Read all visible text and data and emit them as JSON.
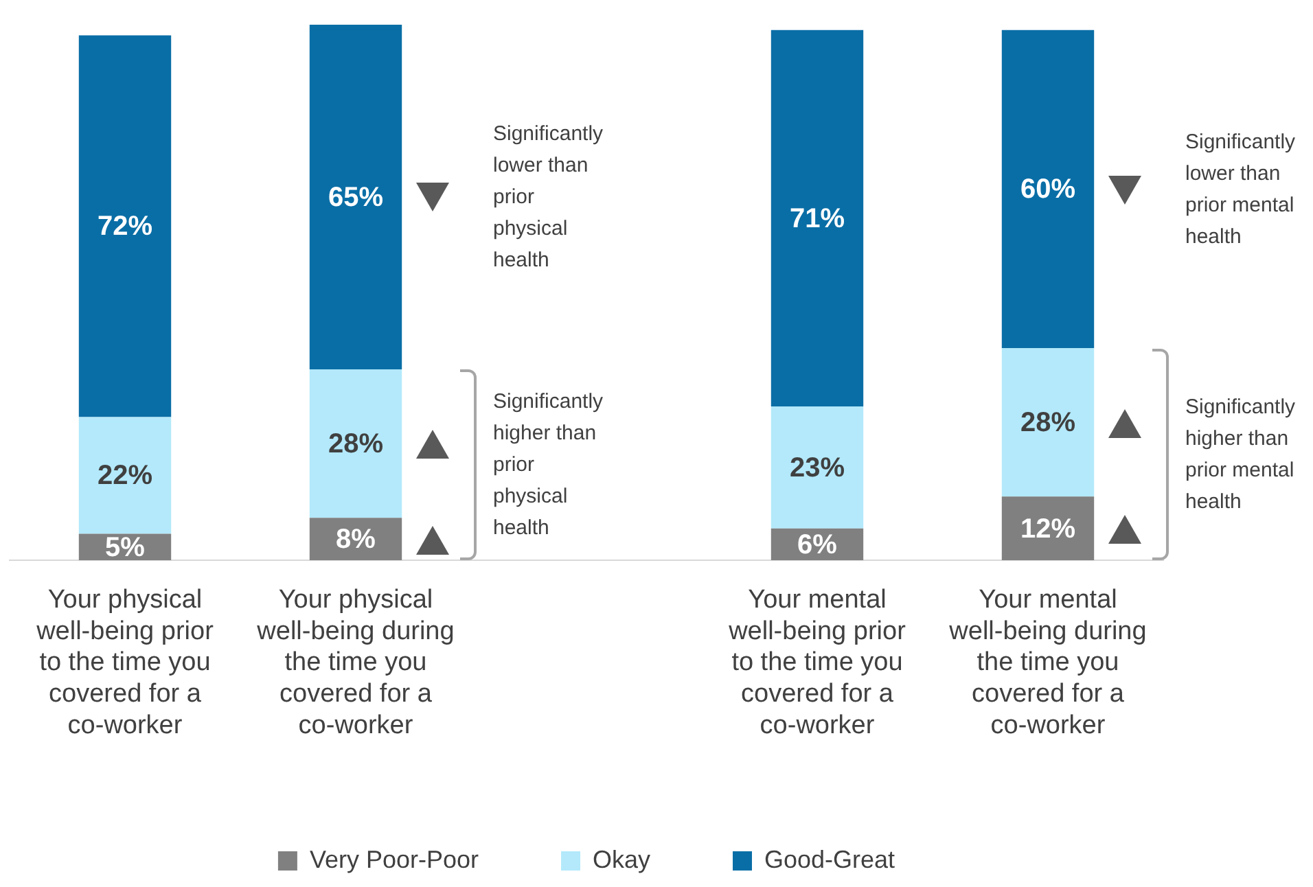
{
  "chart_data": {
    "type": "bar",
    "stacked": true,
    "legend": "bottom",
    "grid": false,
    "categories": [
      "Your physical well-being prior to the time you covered for a co-worker",
      "Your physical well-being during the time you covered for a co-worker",
      null,
      "Your mental well-being prior to the time you covered for a co-worker",
      "Your mental well-being during the time you covered for a co-worker"
    ],
    "series": [
      {
        "name": "Very Poor-Poor",
        "color": "#808080",
        "values": [
          5,
          8,
          null,
          6,
          12
        ],
        "value_labels": [
          "5%",
          "8%",
          null,
          "6%",
          "12%"
        ]
      },
      {
        "name": "Okay",
        "color": "#b3e9fb",
        "values": [
          22,
          28,
          null,
          23,
          28
        ],
        "value_labels": [
          "22%",
          "28%",
          null,
          "23%",
          "28%"
        ]
      },
      {
        "name": "Good-Great",
        "color": "#0a6ea6",
        "values": [
          72,
          65,
          null,
          71,
          60
        ],
        "value_labels": [
          "72%",
          "65%",
          null,
          "71%",
          "60%"
        ]
      }
    ],
    "annotations": [
      "Significantly lower than prior physical health",
      "Significantly higher than prior physical health",
      "Significantly lower than prior mental health",
      "Significantly higher than prior mental health"
    ]
  }
}
